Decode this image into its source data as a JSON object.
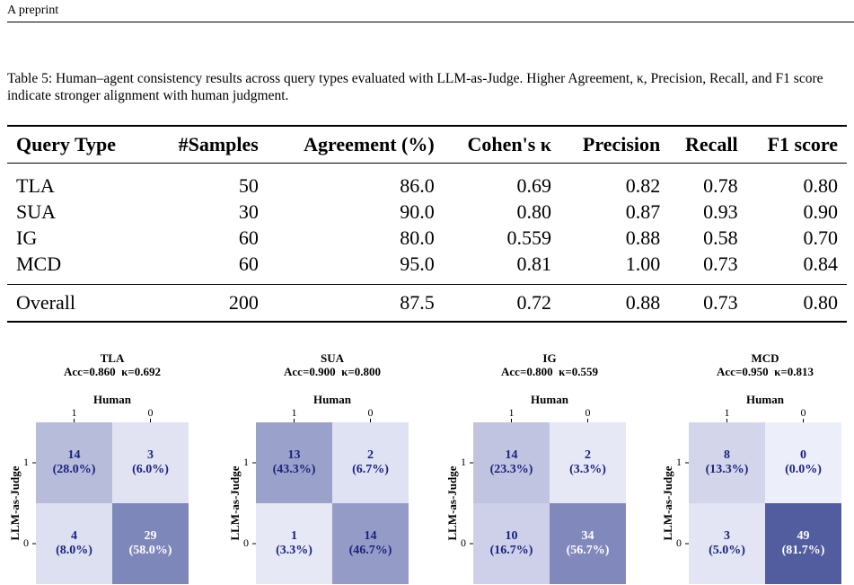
{
  "header": {
    "title": "A preprint"
  },
  "table": {
    "caption": "Table 5: Human–agent consistency results across query types evaluated with LLM-as-Judge. Higher Agreement, κ, Precision, Recall, and F1 score indicate stronger alignment with human judgment.",
    "columns": [
      "Query Type",
      "#Samples",
      "Agreement (%)",
      "Cohen's κ",
      "Precision",
      "Recall",
      "F1 score"
    ],
    "rows": [
      [
        "TLA",
        "50",
        "86.0",
        "0.69",
        "0.82",
        "0.78",
        "0.80"
      ],
      [
        "SUA",
        "30",
        "90.0",
        "0.80",
        "0.87",
        "0.93",
        "0.90"
      ],
      [
        "IG",
        "60",
        "80.0",
        "0.559",
        "0.88",
        "0.58",
        "0.70"
      ],
      [
        "MCD",
        "60",
        "95.0",
        "0.81",
        "1.00",
        "0.73",
        "0.84"
      ]
    ],
    "summary": [
      "Overall",
      "200",
      "87.5",
      "0.72",
      "0.88",
      "0.73",
      "0.80"
    ]
  },
  "matrices": [
    {
      "title": "TLA",
      "subtitle": "Acc=0.860  κ=0.692",
      "xlabel": "Human",
      "ylabel": "LLM-as-Judge",
      "xticks": [
        "1",
        "0"
      ],
      "yticks": [
        "1",
        "0"
      ],
      "cells": [
        [
          {
            "count": 14,
            "percent": "(28.0%)"
          },
          {
            "count": 3,
            "percent": "(6.0%)"
          }
        ],
        [
          {
            "count": 4,
            "percent": "(8.0%)"
          },
          {
            "count": 29,
            "percent": "(58.0%)"
          }
        ]
      ]
    },
    {
      "title": "SUA",
      "subtitle": "Acc=0.900  κ=0.800",
      "xlabel": "Human",
      "ylabel": "LLM-as-Judge",
      "xticks": [
        "1",
        "0"
      ],
      "yticks": [
        "1",
        "0"
      ],
      "cells": [
        [
          {
            "count": 13,
            "percent": "(43.3%)"
          },
          {
            "count": 2,
            "percent": "(6.7%)"
          }
        ],
        [
          {
            "count": 1,
            "percent": "(3.3%)"
          },
          {
            "count": 14,
            "percent": "(46.7%)"
          }
        ]
      ]
    },
    {
      "title": "IG",
      "subtitle": "Acc=0.800  κ=0.559",
      "xlabel": "Human",
      "ylabel": "LLM-as-Judge",
      "xticks": [
        "1",
        "0"
      ],
      "yticks": [
        "1",
        "0"
      ],
      "cells": [
        [
          {
            "count": 14,
            "percent": "(23.3%)"
          },
          {
            "count": 2,
            "percent": "(3.3%)"
          }
        ],
        [
          {
            "count": 10,
            "percent": "(16.7%)"
          },
          {
            "count": 34,
            "percent": "(56.7%)"
          }
        ]
      ]
    },
    {
      "title": "MCD",
      "subtitle": "Acc=0.950  κ=0.813",
      "xlabel": "Human",
      "ylabel": "LLM-as-Judge",
      "xticks": [
        "1",
        "0"
      ],
      "yticks": [
        "1",
        "0"
      ],
      "cells": [
        [
          {
            "count": 8,
            "percent": "(13.3%)"
          },
          {
            "count": 0,
            "percent": "(0.0%)"
          }
        ],
        [
          {
            "count": 3,
            "percent": "(5.0%)"
          },
          {
            "count": 49,
            "percent": "(81.7%)"
          }
        ]
      ]
    }
  ]
}
